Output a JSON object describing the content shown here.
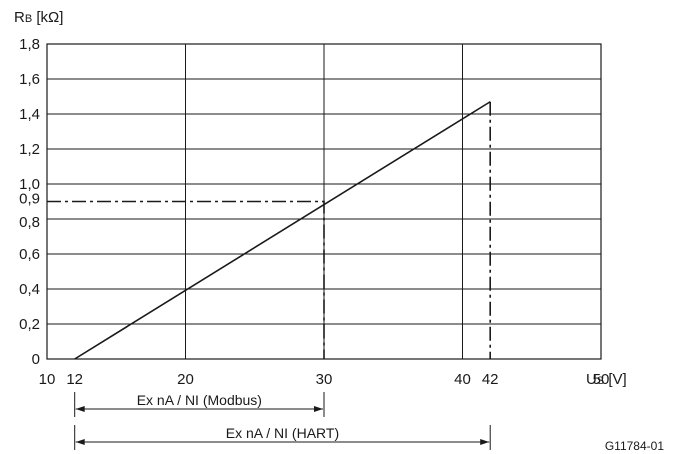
{
  "chart_data": {
    "type": "line",
    "ylabel_main": "R",
    "ylabel_sub": "B",
    "ylabel_unit": " [kΩ]",
    "xlabel_main": "U",
    "xlabel_sub": "S",
    "xlabel_unit": " [V]",
    "xlim": [
      10,
      50
    ],
    "ylim": [
      0,
      1.8
    ],
    "grid": true,
    "x_ticks": [
      {
        "value": 10,
        "label": "10"
      },
      {
        "value": 12,
        "label": "12"
      },
      {
        "value": 20,
        "label": "20"
      },
      {
        "value": 30,
        "label": "30"
      },
      {
        "value": 40,
        "label": "40"
      },
      {
        "value": 42,
        "label": "42"
      },
      {
        "value": 50,
        "label": "50"
      }
    ],
    "x_gridlines": [
      20,
      30,
      40
    ],
    "y_ticks": [
      {
        "value": 0,
        "label": "0"
      },
      {
        "value": 0.2,
        "label": "0,2"
      },
      {
        "value": 0.4,
        "label": "0,4"
      },
      {
        "value": 0.6,
        "label": "0,6"
      },
      {
        "value": 0.8,
        "label": "0,8"
      },
      {
        "value": 0.9,
        "label": "0,9"
      },
      {
        "value": 1.0,
        "label": "1,0"
      },
      {
        "value": 1.2,
        "label": "1,2"
      },
      {
        "value": 1.4,
        "label": "1,4"
      },
      {
        "value": 1.6,
        "label": "1,6"
      },
      {
        "value": 1.8,
        "label": "1,8"
      }
    ],
    "y_gridlines": [
      0.2,
      0.4,
      0.6,
      0.8,
      1.0,
      1.2,
      1.4,
      1.6
    ],
    "series": [
      {
        "x": [
          12,
          42
        ],
        "y": [
          0,
          1.47
        ],
        "style": "solid"
      }
    ],
    "reference_lines": [
      {
        "points": [
          [
            10,
            0.9
          ],
          [
            30,
            0.9
          ],
          [
            30,
            0
          ]
        ],
        "style": "dash-dot"
      },
      {
        "points": [
          [
            42,
            1.47
          ],
          [
            42,
            0
          ]
        ],
        "style": "dash-dot"
      }
    ],
    "ranges": [
      {
        "from": 12,
        "to": 30,
        "label": "Ex nA / NI (Modbus)"
      },
      {
        "from": 12,
        "to": 42,
        "label": "Ex nA / NI (HART)"
      }
    ],
    "figure_id": "G11784-01"
  }
}
